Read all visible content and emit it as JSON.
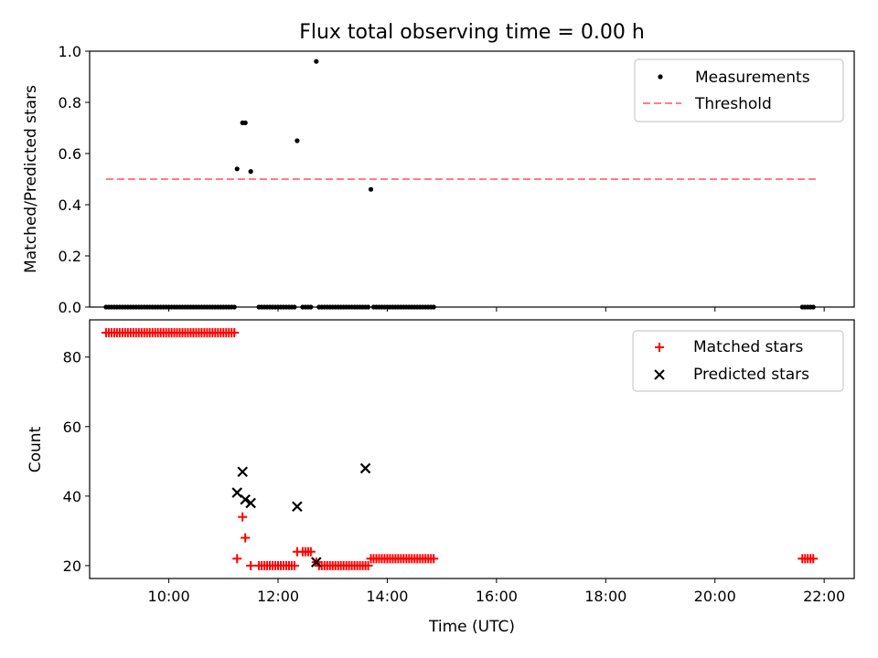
{
  "chart_data": [
    {
      "type": "scatter",
      "title": "Flux total observing time = 0.00 h",
      "xlabel": "",
      "ylabel": "Matched/Predicted stars",
      "xlim": [
        "08:33",
        "22:33"
      ],
      "ylim": [
        0,
        1.0
      ],
      "yticks": [
        "0.0",
        "0.2",
        "0.4",
        "0.6",
        "0.8",
        "1.0"
      ],
      "legend_position": "top-right",
      "series": [
        {
          "name": "Measurements",
          "kind": "points",
          "color": "#000000",
          "x": [
            "08:51",
            "08:54",
            "08:57",
            "09:00",
            "09:03",
            "09:06",
            "09:09",
            "09:12",
            "09:15",
            "09:18",
            "09:21",
            "09:24",
            "09:27",
            "09:30",
            "09:33",
            "09:36",
            "09:39",
            "09:42",
            "09:45",
            "09:48",
            "09:51",
            "09:54",
            "09:57",
            "10:00",
            "10:03",
            "10:06",
            "10:09",
            "10:12",
            "10:15",
            "10:18",
            "10:21",
            "10:24",
            "10:27",
            "10:30",
            "10:33",
            "10:36",
            "10:39",
            "10:42",
            "10:45",
            "10:48",
            "10:51",
            "10:54",
            "10:57",
            "11:00",
            "11:03",
            "11:06",
            "11:09",
            "11:12",
            "11:15",
            "11:21",
            "11:24",
            "11:30",
            "11:39",
            "11:42",
            "11:45",
            "11:48",
            "11:51",
            "11:54",
            "11:57",
            "12:00",
            "12:03",
            "12:06",
            "12:09",
            "12:12",
            "12:15",
            "12:18",
            "12:21",
            "12:27",
            "12:30",
            "12:33",
            "12:36",
            "12:42",
            "12:45",
            "12:48",
            "12:51",
            "12:54",
            "12:57",
            "13:00",
            "13:03",
            "13:06",
            "13:09",
            "13:12",
            "13:15",
            "13:18",
            "13:21",
            "13:24",
            "13:27",
            "13:30",
            "13:33",
            "13:36",
            "13:39",
            "13:42",
            "13:45",
            "13:48",
            "13:51",
            "13:54",
            "13:57",
            "14:00",
            "14:03",
            "14:06",
            "14:09",
            "14:12",
            "14:15",
            "14:18",
            "14:21",
            "14:24",
            "14:27",
            "14:30",
            "14:33",
            "14:36",
            "14:39",
            "14:42",
            "14:45",
            "14:48",
            "14:51",
            "21:36",
            "21:39",
            "21:42",
            "21:45",
            "21:48"
          ],
          "y": [
            0,
            0,
            0,
            0,
            0,
            0,
            0,
            0,
            0,
            0,
            0,
            0,
            0,
            0,
            0,
            0,
            0,
            0,
            0,
            0,
            0,
            0,
            0,
            0,
            0,
            0,
            0,
            0,
            0,
            0,
            0,
            0,
            0,
            0,
            0,
            0,
            0,
            0,
            0,
            0,
            0,
            0,
            0,
            0,
            0,
            0,
            0,
            0,
            0.54,
            0.72,
            0.72,
            0.53,
            0,
            0,
            0,
            0,
            0,
            0,
            0,
            0,
            0,
            0,
            0,
            0,
            0,
            0,
            0.65,
            0,
            0,
            0,
            0,
            0.96,
            0,
            0,
            0,
            0,
            0,
            0,
            0,
            0,
            0,
            0,
            0,
            0,
            0,
            0,
            0,
            0,
            0,
            0,
            0,
            0.46,
            0,
            0,
            0,
            0,
            0,
            0,
            0,
            0,
            0,
            0,
            0,
            0,
            0,
            0,
            0,
            0,
            0,
            0,
            0,
            0,
            0,
            0,
            0,
            0,
            0,
            0,
            0,
            0
          ]
        },
        {
          "name": "Threshold",
          "kind": "dashed-line",
          "color": "#ff7f7f",
          "x": [
            "08:51",
            "21:51"
          ],
          "y": [
            0.5,
            0.5
          ]
        }
      ]
    },
    {
      "type": "scatter",
      "title": "",
      "xlabel": "Time (UTC)",
      "ylabel": "Count",
      "xlim": [
        "08:33",
        "22:33"
      ],
      "ylim": [
        16.3,
        90.7
      ],
      "yticks": [
        "20",
        "40",
        "60",
        "80"
      ],
      "xticks": [
        "10:00",
        "12:00",
        "14:00",
        "16:00",
        "18:00",
        "20:00",
        "22:00"
      ],
      "legend_position": "top-right",
      "series": [
        {
          "name": "Matched stars",
          "marker": "plus",
          "color": "#ff0000",
          "x": [
            "08:51",
            "08:54",
            "08:57",
            "09:00",
            "09:03",
            "09:06",
            "09:09",
            "09:12",
            "09:15",
            "09:18",
            "09:21",
            "09:24",
            "09:27",
            "09:30",
            "09:33",
            "09:36",
            "09:39",
            "09:42",
            "09:45",
            "09:48",
            "09:51",
            "09:54",
            "09:57",
            "10:00",
            "10:03",
            "10:06",
            "10:09",
            "10:12",
            "10:15",
            "10:18",
            "10:21",
            "10:24",
            "10:27",
            "10:30",
            "10:33",
            "10:36",
            "10:39",
            "10:42",
            "10:45",
            "10:48",
            "10:51",
            "10:54",
            "10:57",
            "11:00",
            "11:03",
            "11:06",
            "11:09",
            "11:12",
            "11:15",
            "11:21",
            "11:24",
            "11:30",
            "11:39",
            "11:42",
            "11:45",
            "11:48",
            "11:51",
            "11:54",
            "11:57",
            "12:00",
            "12:03",
            "12:06",
            "12:09",
            "12:12",
            "12:15",
            "12:18",
            "12:21",
            "12:27",
            "12:30",
            "12:33",
            "12:36",
            "12:42",
            "12:45",
            "12:48",
            "12:51",
            "12:54",
            "12:57",
            "13:00",
            "13:03",
            "13:06",
            "13:09",
            "13:12",
            "13:15",
            "13:18",
            "13:21",
            "13:24",
            "13:27",
            "13:30",
            "13:33",
            "13:36",
            "13:39",
            "13:42",
            "13:45",
            "13:48",
            "13:51",
            "13:54",
            "13:57",
            "14:00",
            "14:03",
            "14:06",
            "14:09",
            "14:12",
            "14:15",
            "14:18",
            "14:21",
            "14:24",
            "14:27",
            "14:30",
            "14:33",
            "14:36",
            "14:39",
            "14:42",
            "14:45",
            "14:48",
            "14:51",
            "21:36",
            "21:39",
            "21:42",
            "21:45",
            "21:48"
          ],
          "y": [
            87,
            87,
            87,
            87,
            87,
            87,
            87,
            87,
            87,
            87,
            87,
            87,
            87,
            87,
            87,
            87,
            87,
            87,
            87,
            87,
            87,
            87,
            87,
            87,
            87,
            87,
            87,
            87,
            87,
            87,
            87,
            87,
            87,
            87,
            87,
            87,
            87,
            87,
            87,
            87,
            87,
            87,
            87,
            87,
            87,
            87,
            87,
            87,
            22,
            34,
            28,
            20,
            20,
            20,
            20,
            20,
            20,
            20,
            20,
            20,
            20,
            20,
            20,
            20,
            20,
            20,
            24,
            24,
            24,
            24,
            24,
            21,
            20,
            20,
            20,
            20,
            20,
            20,
            20,
            20,
            20,
            20,
            20,
            20,
            20,
            20,
            20,
            20,
            20,
            20,
            20,
            22,
            22,
            22,
            22,
            22,
            22,
            22,
            22,
            22,
            22,
            22,
            22,
            22,
            22,
            22,
            22,
            22,
            22,
            22,
            22,
            22,
            22,
            22,
            22,
            22,
            22,
            22,
            22,
            22
          ]
        },
        {
          "name": "Predicted stars",
          "marker": "x",
          "color": "#000000",
          "x": [
            "11:15",
            "11:21",
            "11:24",
            "11:30",
            "12:21",
            "12:42",
            "13:36"
          ],
          "y": [
            41,
            47,
            39,
            38,
            37,
            21,
            48
          ]
        }
      ]
    }
  ]
}
